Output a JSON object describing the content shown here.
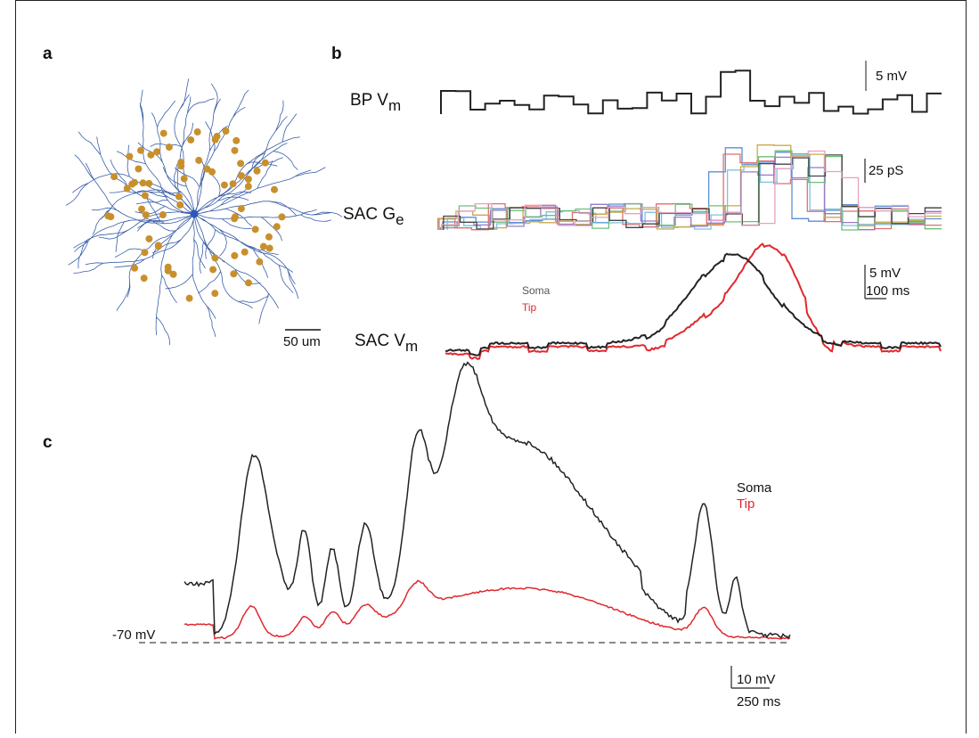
{
  "panel_a": {
    "label": "a",
    "scale_bar": "50 um"
  },
  "panel_b": {
    "label": "b",
    "bp": {
      "name": "BP V",
      "subscript": "m",
      "scale": "5 mV"
    },
    "ge": {
      "name": "SAC G",
      "subscript": "e",
      "scale": "25 pS"
    },
    "vm": {
      "name": "SAC V",
      "subscript": "m",
      "scale_v": "5 mV",
      "scale_t": "100 ms",
      "legend": [
        "Soma",
        "Tip"
      ]
    }
  },
  "panel_c": {
    "label": "c",
    "legend": [
      "Soma",
      "Tip"
    ],
    "baseline": "-70 mV",
    "scale_v": "10 mV",
    "scale_t": "250 ms"
  }
}
